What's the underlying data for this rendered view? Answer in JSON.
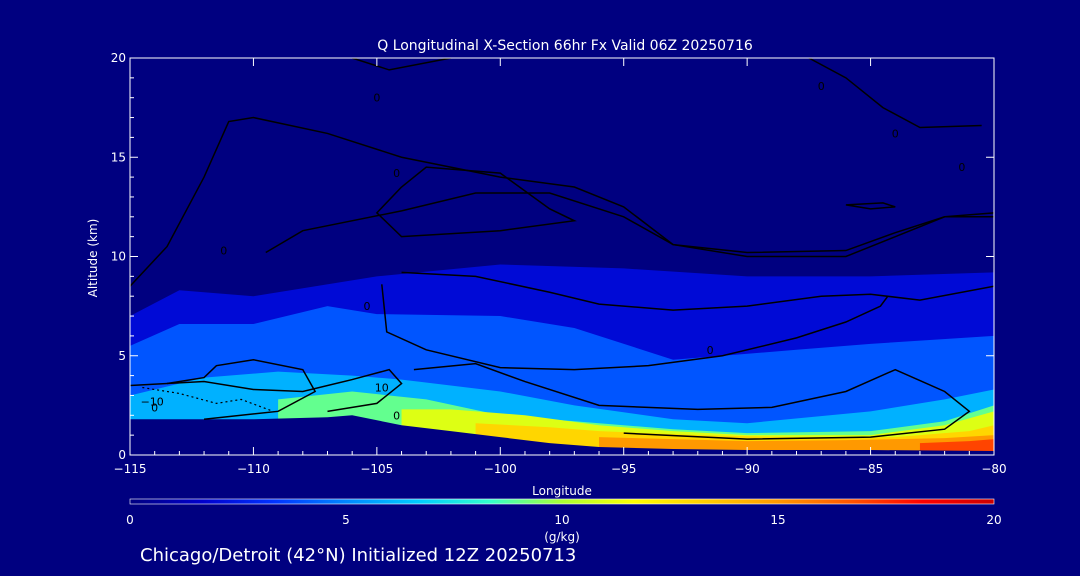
{
  "chart_data": {
    "type": "contour",
    "title": "Q Longitudinal X-Section 66hr  Fx Valid 06Z 20250716",
    "xlabel": "Longitude",
    "ylabel": "Altitude (km)",
    "xlim": [
      -115,
      -80
    ],
    "ylim": [
      0,
      20
    ],
    "x_ticks": [
      -115,
      -110,
      -105,
      -100,
      -95,
      -90,
      -85,
      -80
    ],
    "x_tick_labels": [
      "−115",
      "−110",
      "−105",
      "−100",
      "−95",
      "−90",
      "−85",
      "−80"
    ],
    "y_ticks": [
      0,
      5,
      10,
      15,
      20
    ],
    "y_tick_labels": [
      "0",
      "5",
      "10",
      "15",
      "20"
    ],
    "colorbar": {
      "label": "(g/kg)",
      "min": 0,
      "max": 20,
      "ticks": [
        0,
        5,
        10,
        15,
        20
      ],
      "tick_labels": [
        "0",
        "5",
        "10",
        "15",
        "20"
      ],
      "colors": [
        "#000080",
        "#0000cc",
        "#0033ff",
        "#0088ff",
        "#00ccff",
        "#33ffcc",
        "#aaff33",
        "#ffff00",
        "#ffcc00",
        "#ff9900",
        "#ff5500",
        "#ff0000",
        "#cc0000"
      ]
    },
    "terrain": [
      [
        -115,
        1.8
      ],
      [
        -110,
        1.8
      ],
      [
        -107,
        1.9
      ],
      [
        -106,
        2.0
      ],
      [
        -104,
        1.5
      ],
      [
        -102,
        1.2
      ],
      [
        -100,
        0.9
      ],
      [
        -98,
        0.6
      ],
      [
        -96,
        0.4
      ],
      [
        -93,
        0.3
      ],
      [
        -90,
        0.25
      ],
      [
        -85,
        0.25
      ],
      [
        -80,
        0.2
      ]
    ],
    "moisture_layers": [
      {
        "q": 2,
        "top": [
          [
            -115,
            7.0
          ],
          [
            -113,
            8.3
          ],
          [
            -110,
            8.0
          ],
          [
            -105,
            9.0
          ],
          [
            -100,
            9.6
          ],
          [
            -95,
            9.4
          ],
          [
            -90,
            9.0
          ],
          [
            -85,
            9.0
          ],
          [
            -80,
            9.2
          ]
        ]
      },
      {
        "q": 4,
        "top": [
          [
            -115,
            5.5
          ],
          [
            -113,
            6.6
          ],
          [
            -110,
            6.6
          ],
          [
            -107,
            7.5
          ],
          [
            -105,
            7.1
          ],
          [
            -100,
            7.0
          ],
          [
            -97,
            6.4
          ],
          [
            -93,
            4.8
          ],
          [
            -88,
            5.3
          ],
          [
            -85,
            5.6
          ],
          [
            -80,
            6.0
          ]
        ]
      },
      {
        "q": 6,
        "top": [
          [
            -115,
            3.0
          ],
          [
            -112,
            3.9
          ],
          [
            -109,
            4.2
          ],
          [
            -106,
            4.0
          ],
          [
            -104,
            3.8
          ],
          [
            -100,
            3.2
          ],
          [
            -97,
            2.5
          ],
          [
            -93,
            1.8
          ],
          [
            -90,
            1.6
          ],
          [
            -85,
            2.2
          ],
          [
            -82,
            2.8
          ],
          [
            -80,
            3.3
          ]
        ]
      },
      {
        "q": 9,
        "top": [
          [
            -109,
            2.8
          ],
          [
            -106,
            3.2
          ],
          [
            -103,
            2.8
          ],
          [
            -100,
            2.0
          ],
          [
            -97,
            1.7
          ],
          [
            -93,
            1.3
          ],
          [
            -90,
            1.1
          ],
          [
            -85,
            1.2
          ],
          [
            -82,
            1.7
          ],
          [
            -80,
            2.5
          ]
        ]
      },
      {
        "q": 11,
        "top": [
          [
            -104,
            2.3
          ],
          [
            -102,
            2.3
          ],
          [
            -99,
            2.0
          ],
          [
            -96,
            1.5
          ],
          [
            -93,
            1.2
          ],
          [
            -90,
            1.0
          ],
          [
            -85,
            1.0
          ],
          [
            -82,
            1.5
          ],
          [
            -80,
            2.2
          ]
        ]
      },
      {
        "q": 13,
        "top": [
          [
            -101,
            1.6
          ],
          [
            -98,
            1.4
          ],
          [
            -96,
            1.2
          ],
          [
            -92,
            1.0
          ],
          [
            -88,
            0.9
          ],
          [
            -84,
            0.9
          ],
          [
            -81,
            1.2
          ],
          [
            -80,
            1.5
          ]
        ]
      },
      {
        "q": 15,
        "top": [
          [
            -96,
            0.9
          ],
          [
            -93,
            0.8
          ],
          [
            -90,
            0.7
          ],
          [
            -86,
            0.75
          ],
          [
            -82,
            0.85
          ],
          [
            -80,
            1.0
          ]
        ]
      },
      {
        "q": 17,
        "top": [
          [
            -83,
            0.6
          ],
          [
            -81,
            0.7
          ],
          [
            -80,
            0.8
          ]
        ]
      }
    ],
    "contour_labels": [
      {
        "text": "0",
        "lon": -104.2,
        "alt": 1.8
      },
      {
        "text": "10",
        "lon": -104.8,
        "alt": 3.2
      },
      {
        "text": "−10",
        "lon": -114.1,
        "alt": 2.5
      },
      {
        "text": "0",
        "lon": -105.4,
        "alt": 7.3
      },
      {
        "text": "0",
        "lon": -91.5,
        "alt": 5.1
      },
      {
        "text": "0",
        "lon": -114.0,
        "alt": 2.2
      },
      {
        "text": "0",
        "lon": -111.2,
        "alt": 10.1
      },
      {
        "text": "0",
        "lon": -104.2,
        "alt": 14.0
      },
      {
        "text": "0",
        "lon": -105.0,
        "alt": 17.8
      },
      {
        "text": "0",
        "lon": -87.0,
        "alt": 18.4
      },
      {
        "text": "0",
        "lon": -84.0,
        "alt": 16.0
      },
      {
        "text": "0",
        "lon": -81.3,
        "alt": 14.3
      }
    ],
    "footer": "Chicago/Detroit (42°N) Initialized 12Z 20250713"
  }
}
